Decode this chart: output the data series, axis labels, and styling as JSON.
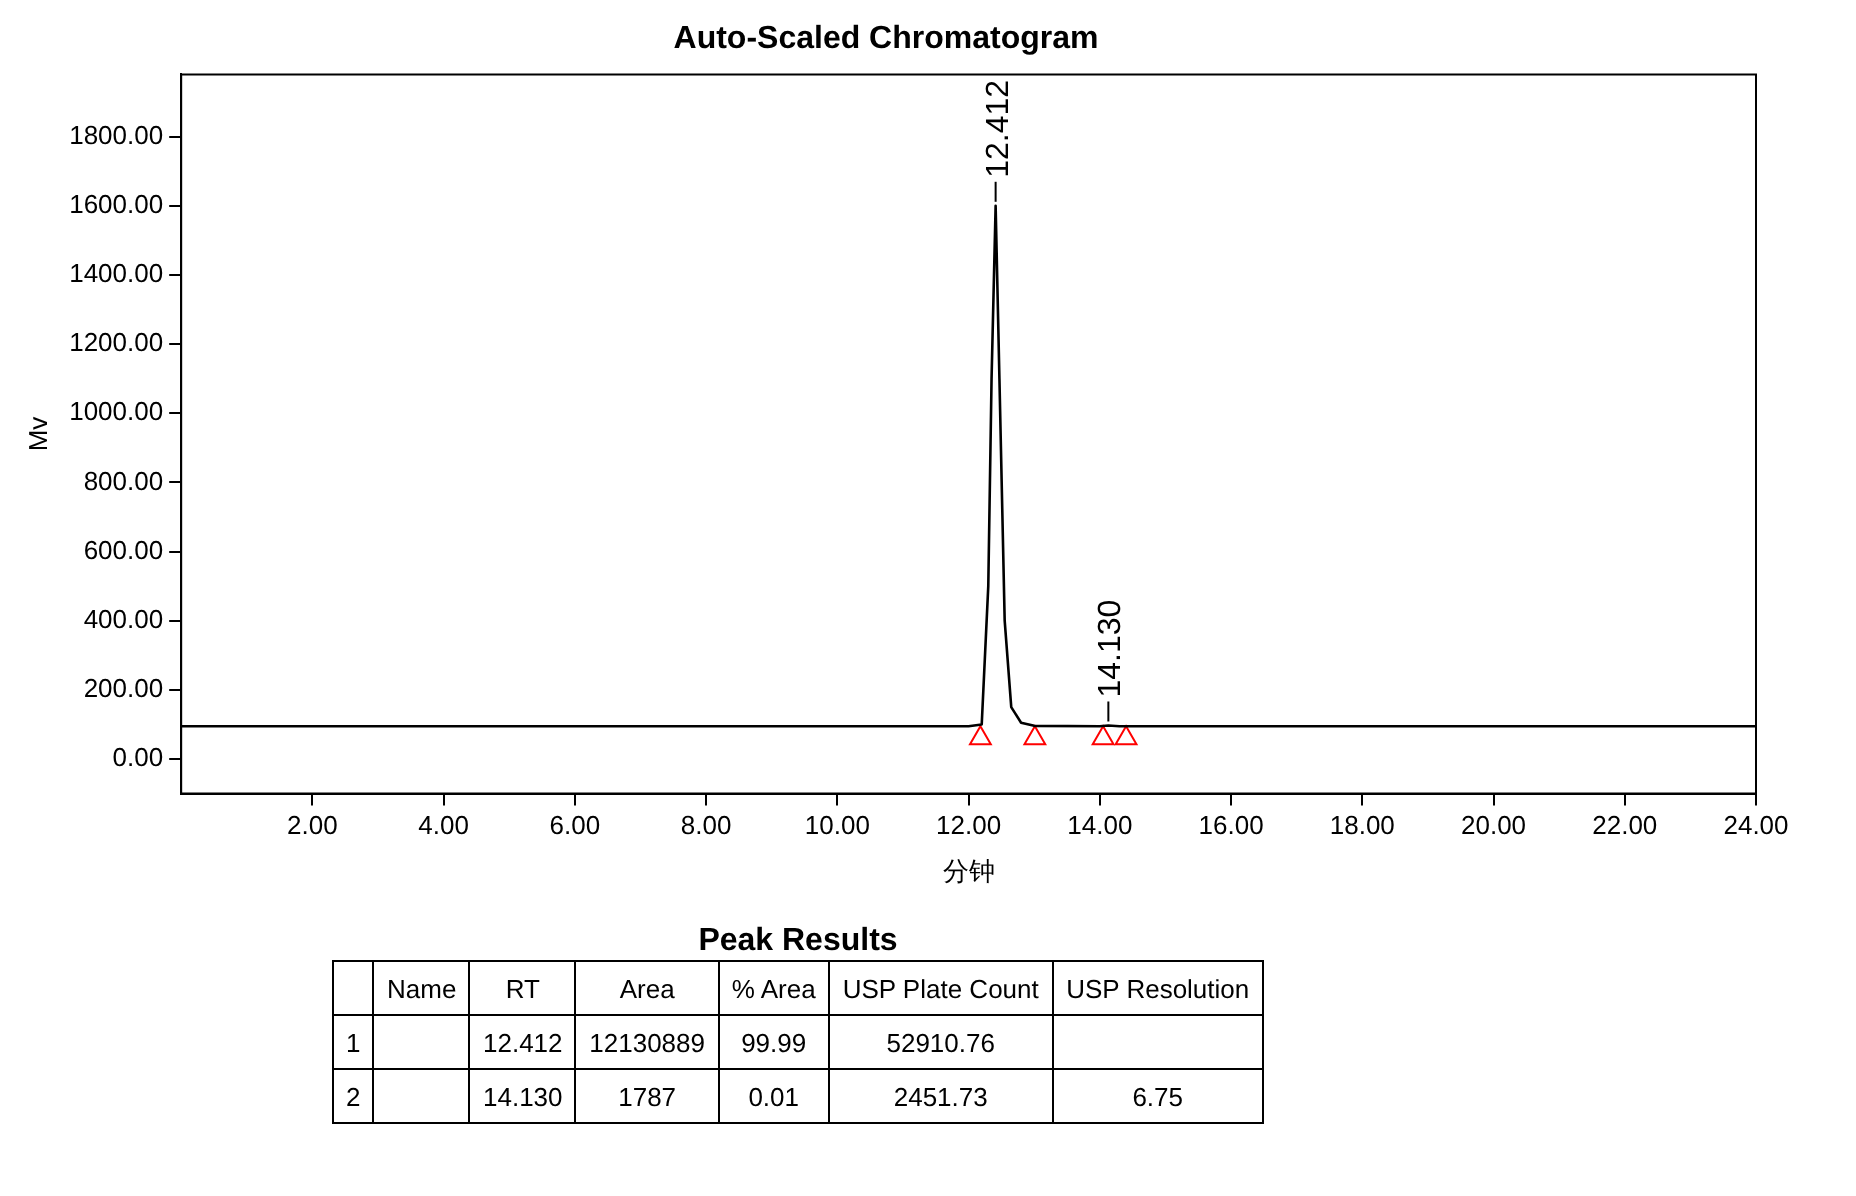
{
  "chart_data": [
    {
      "type": "line",
      "title": "Auto-Scaled Chromatogram",
      "xlabel": "分钟",
      "ylabel": "Mv",
      "xlim": [
        0,
        24
      ],
      "ylim": [
        -100,
        1980
      ],
      "xticks": [
        {
          "value": 2,
          "label": "2.00"
        },
        {
          "value": 4,
          "label": "4.00"
        },
        {
          "value": 6,
          "label": "6.00"
        },
        {
          "value": 8,
          "label": "8.00"
        },
        {
          "value": 10,
          "label": "10.00"
        },
        {
          "value": 12,
          "label": "12.00"
        },
        {
          "value": 14,
          "label": "14.00"
        },
        {
          "value": 16,
          "label": "16.00"
        },
        {
          "value": 18,
          "label": "18.00"
        },
        {
          "value": 20,
          "label": "20.00"
        },
        {
          "value": 22,
          "label": "22.00"
        },
        {
          "value": 24,
          "label": "24.00"
        }
      ],
      "yticks": [
        {
          "value": 0,
          "label": "0.00"
        },
        {
          "value": 200,
          "label": "200.00"
        },
        {
          "value": 400,
          "label": "400.00"
        },
        {
          "value": 600,
          "label": "600.00"
        },
        {
          "value": 800,
          "label": "800.00"
        },
        {
          "value": 1000,
          "label": "1000.00"
        },
        {
          "value": 1200,
          "label": "1200.00"
        },
        {
          "value": 1400,
          "label": "1400.00"
        },
        {
          "value": 1600,
          "label": "1600.00"
        },
        {
          "value": 1800,
          "label": "1800.00"
        }
      ],
      "grid": false,
      "legend": false,
      "series": [
        {
          "type": "line",
          "color": "#000000",
          "marker": "none",
          "x": [
            0,
            12,
            12.2,
            12.3,
            12.35,
            12.412,
            12.47,
            12.55,
            12.65,
            12.8,
            13,
            14,
            14.13,
            14.3,
            24
          ],
          "values": [
            95,
            95,
            100,
            500,
            1100,
            1600,
            1100,
            400,
            150,
            105,
            96,
            95,
            97,
            95,
            95
          ]
        },
        {
          "type": "scatter",
          "color": "#ff0000",
          "marker": "triangle",
          "x": [
            12.18,
            13.01,
            14.05,
            14.4
          ],
          "values": [
            60,
            60,
            60,
            60
          ]
        }
      ],
      "annotations": [
        {
          "text": "12.412",
          "x": 12.412,
          "y": 1600
        },
        {
          "text": "14.130",
          "x": 14.13,
          "y": 97
        }
      ]
    },
    {
      "type": "other",
      "title": "Peak Results",
      "categories": [
        null,
        "Name",
        "RT",
        "Area",
        "% Area",
        "USP Plate Count",
        "USP Resolution"
      ],
      "cells": [
        [
          "1",
          null,
          "12.412",
          "12130889",
          "99.99",
          "52910.76",
          null
        ],
        [
          "2",
          null,
          "14.130",
          "1787",
          "0.01",
          "2451.73",
          "6.75"
        ]
      ]
    }
  ]
}
